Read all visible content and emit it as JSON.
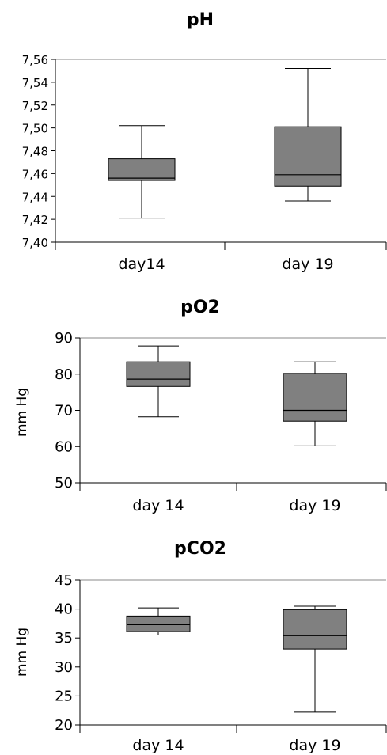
{
  "chart_data": [
    {
      "type": "box",
      "title": "pH",
      "xlabel": "",
      "ylabel": "",
      "ylim": [
        7.4,
        7.56
      ],
      "yticks": [
        "7,40",
        "7,42",
        "7,44",
        "7,46",
        "7,48",
        "7,50",
        "7,52",
        "7,54",
        "7,56"
      ],
      "categories": [
        "day14",
        "day 19"
      ],
      "boxes": [
        {
          "category": "day14",
          "min": 7.421,
          "q1": 7.454,
          "median": 7.456,
          "q3": 7.473,
          "max": 7.502
        },
        {
          "category": "day 19",
          "min": 7.436,
          "q1": 7.449,
          "median": 7.459,
          "q3": 7.501,
          "max": 7.552
        }
      ],
      "box_color": "#808080",
      "grid": false
    },
    {
      "type": "box",
      "title": "pO2",
      "xlabel": "",
      "ylabel": "mm Hg",
      "ylim": [
        50,
        90
      ],
      "yticks": [
        "50",
        "60",
        "70",
        "80",
        "90"
      ],
      "categories": [
        "day 14",
        "day 19"
      ],
      "boxes": [
        {
          "category": "day 14",
          "min": 68.2,
          "q1": 76.6,
          "median": 78.6,
          "q3": 83.4,
          "max": 87.8
        },
        {
          "category": "day 19",
          "min": 60.2,
          "q1": 67.0,
          "median": 70.0,
          "q3": 80.2,
          "max": 83.4
        }
      ],
      "box_color": "#808080",
      "grid": false
    },
    {
      "type": "box",
      "title": "pCO2",
      "xlabel": "",
      "ylabel": "mm Hg",
      "ylim": [
        20,
        45
      ],
      "yticks": [
        "20",
        "25",
        "30",
        "35",
        "40",
        "45"
      ],
      "categories": [
        "day 14",
        "day 19"
      ],
      "boxes": [
        {
          "category": "day 14",
          "min": 35.5,
          "q1": 36.1,
          "median": 37.3,
          "q3": 38.8,
          "max": 40.2
        },
        {
          "category": "day 19",
          "min": 22.2,
          "q1": 33.1,
          "median": 35.4,
          "q3": 39.9,
          "max": 40.5
        }
      ],
      "box_color": "#808080",
      "grid": false
    }
  ]
}
